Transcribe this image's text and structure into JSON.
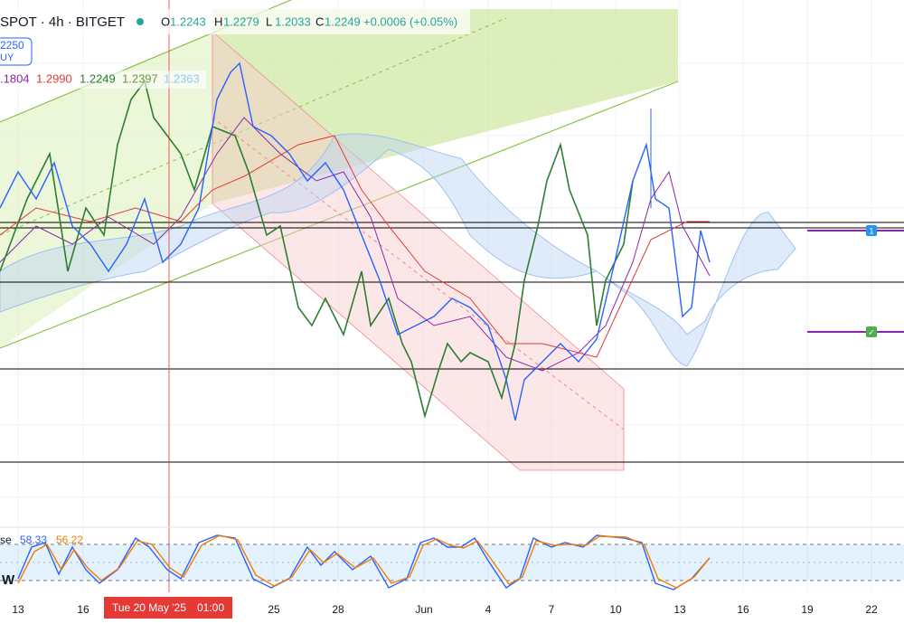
{
  "header": {
    "symbol": "SPOT · 4h · BITGET",
    "ohlc": [
      {
        "key": "O",
        "value": "1.2243"
      },
      {
        "key": "H",
        "value": "1.2279"
      },
      {
        "key": "L",
        "value": "1.2033"
      },
      {
        "key": "C",
        "value": "1.2249"
      }
    ],
    "change": "+0.0006 (+0.05%)"
  },
  "badge": {
    "price": "2250",
    "side": "UY"
  },
  "indicator": {
    "values": [
      ".1804",
      "1.2990",
      "1.2249",
      "1.2397",
      "1.2363"
    ]
  },
  "oscillator": {
    "name": "se",
    "k": "58.33",
    "d": "56.22"
  },
  "left_label": "W",
  "markers": [
    "1",
    "✓"
  ],
  "x_axis": {
    "labels": [
      "13",
      "16",
      "25",
      "28",
      "Jun",
      "4",
      "7",
      "10",
      "13",
      "16",
      "19",
      "22"
    ],
    "crosshair": {
      "date": "Tue 20 May '25",
      "time": "01:00"
    }
  }
}
